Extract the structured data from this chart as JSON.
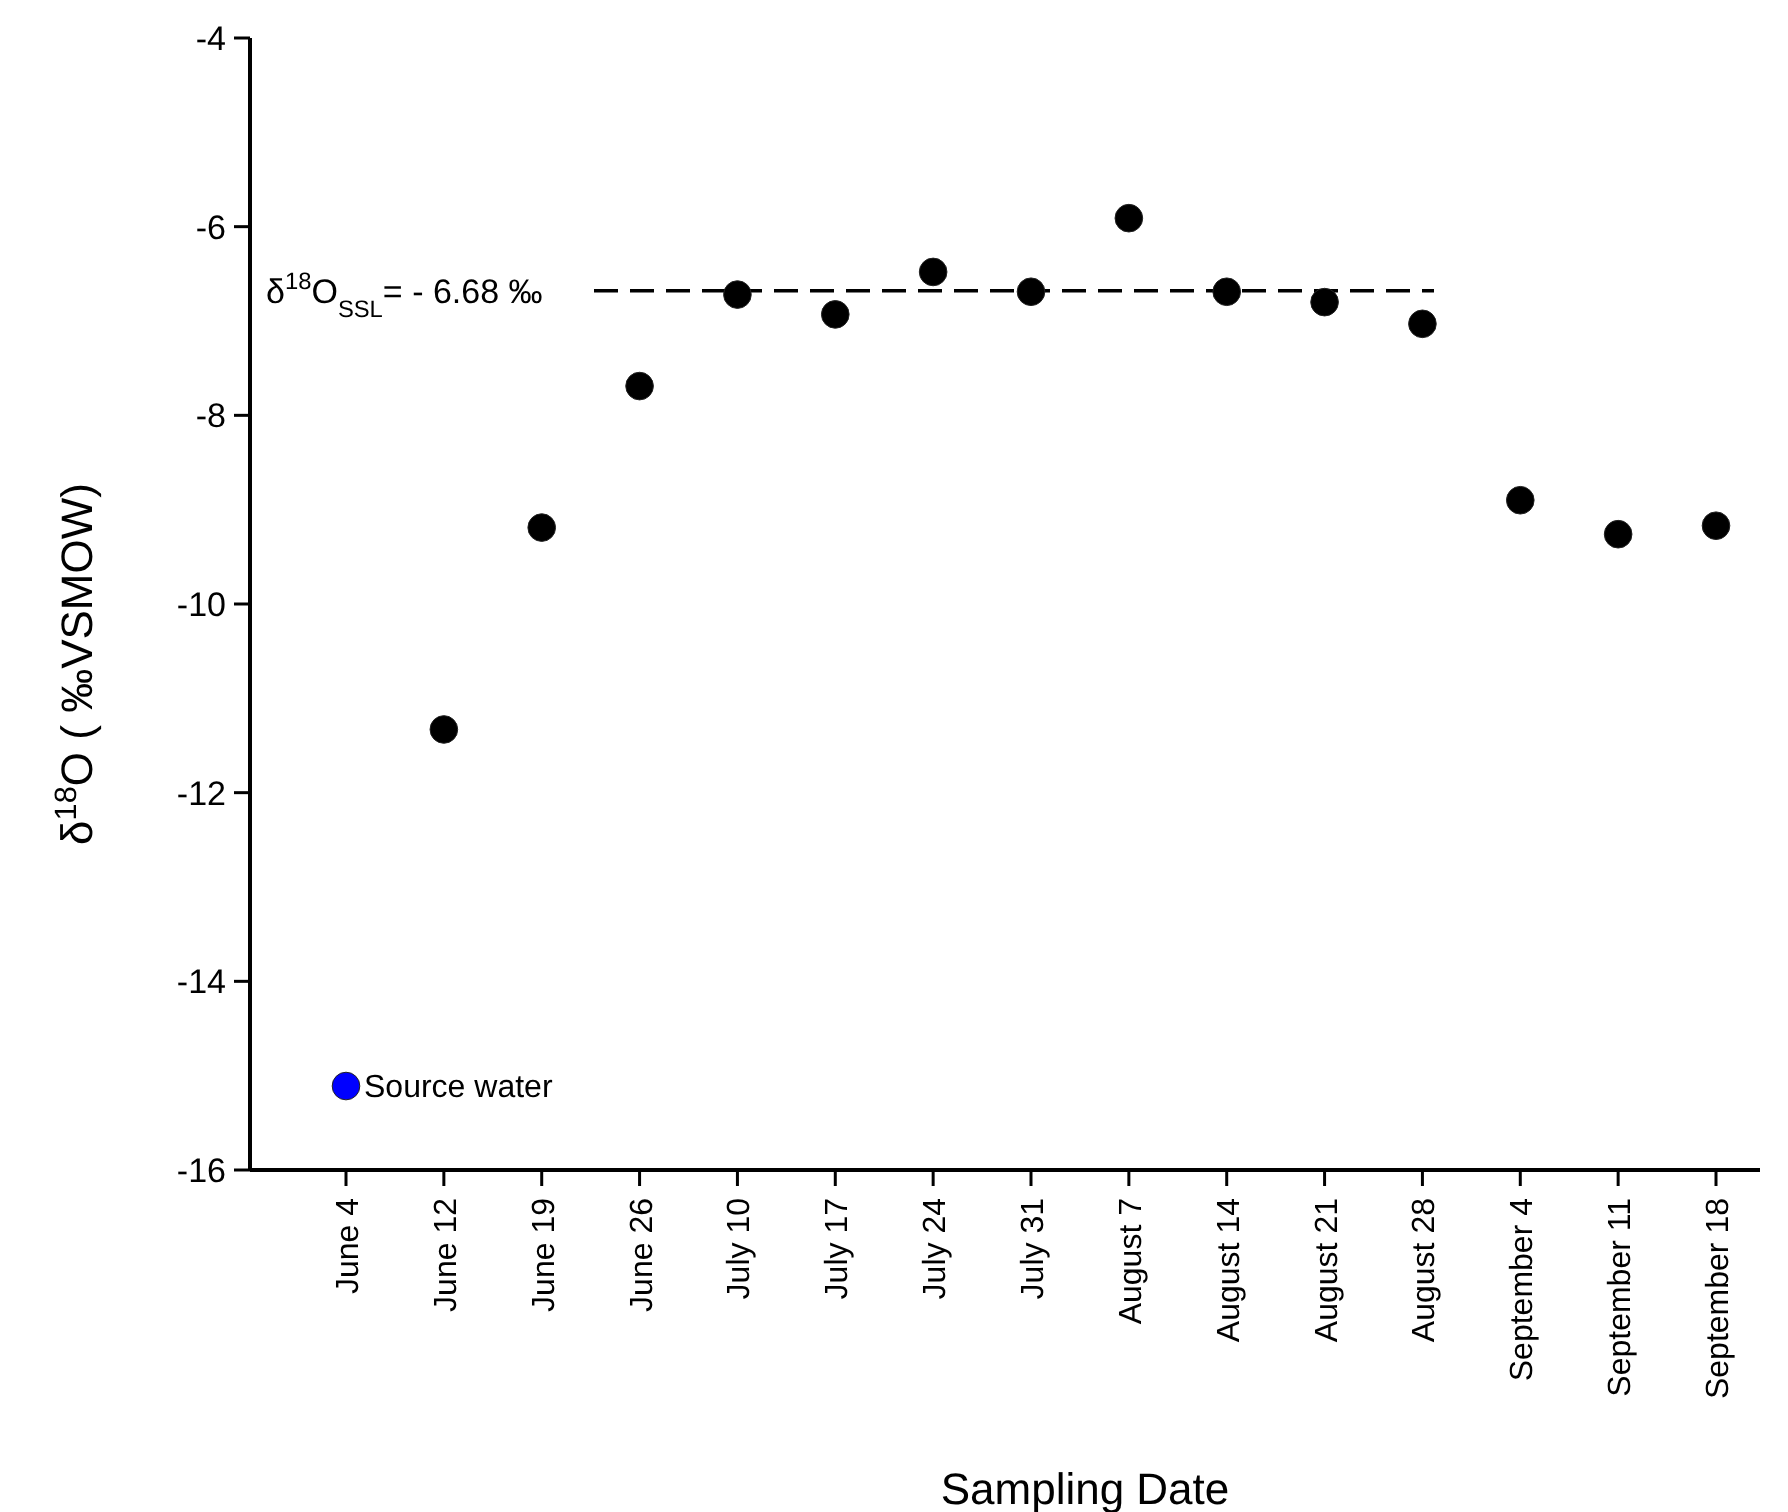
{
  "chart_data": {
    "type": "scatter",
    "xlabel": "Sampling Date",
    "ylabel": "δ$^{18}$O ( ‰VSMOW)",
    "categories": [
      "June 4",
      "June 12",
      "June 19",
      "June 26",
      "July 10",
      "July 17",
      "July 24",
      "July 31",
      "August 7",
      "August 14",
      "August 21",
      "August 28",
      "September 4",
      "September 11",
      "September 18"
    ],
    "series": [
      {
        "name": "Source water",
        "color": "#0000ff",
        "values": [
          -15.11,
          null,
          null,
          null,
          null,
          null,
          null,
          null,
          null,
          null,
          null,
          null,
          null,
          null,
          null
        ]
      },
      {
        "color": "#000000",
        "values": [
          null,
          -11.33,
          -9.19,
          -7.69,
          -6.72,
          -6.93,
          -6.48,
          -6.69,
          -5.91,
          -6.69,
          -6.8,
          -7.03,
          -8.9,
          -9.26,
          -9.17
        ]
      }
    ],
    "ylim": [
      -16,
      -4
    ],
    "yticks": [
      -16,
      -14,
      -12,
      -10,
      -8,
      -6,
      -4
    ],
    "ref_lines": [
      {
        "axis": "y",
        "value": -6.68,
        "label": "δ$^{18}$O$_{SSL}$= - 6.68 ‰",
        "color": "#000000",
        "line_style": "dashed"
      }
    ],
    "marker": "circle",
    "grid": false
  }
}
